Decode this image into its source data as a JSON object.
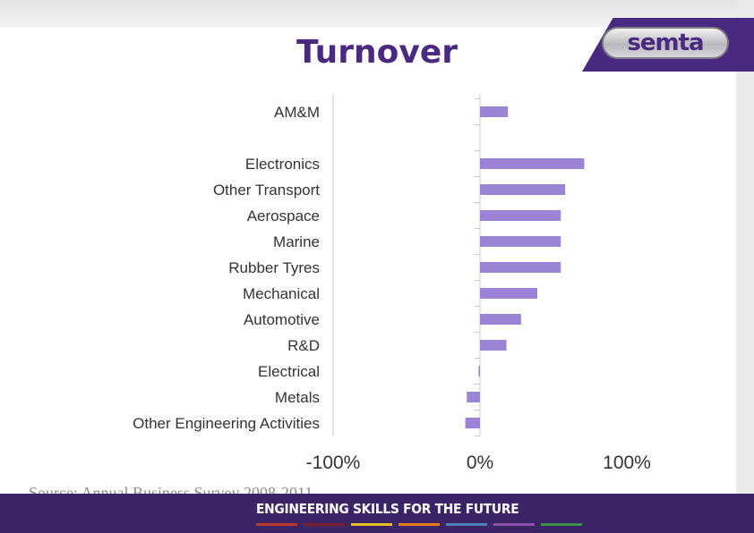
{
  "title": "Turnover",
  "logo": {
    "text": "semta"
  },
  "source": "Source: Annual Business Survey 2008-2011",
  "footer": {
    "tagline": "ENGINEERING SKILLS FOR THE FUTURE",
    "stripes": [
      "#c0392b",
      "#7a1f2b",
      "#e3c02a",
      "#e47a1f",
      "#4f7fbf",
      "#8e4fa8",
      "#3a8f4a"
    ]
  },
  "colors": {
    "bar": "#9b84d6",
    "title": "#4a2a80",
    "footer": "#3b2567"
  },
  "chart_data": {
    "type": "bar",
    "orientation": "horizontal",
    "categories": [
      "AM&M",
      "",
      "Electronics",
      "Other Transport",
      "Aerospace",
      "Marine",
      "Rubber Tyres",
      "Mechanical",
      "Automotive",
      "R&D",
      "Electrical",
      "Metals",
      "Other Engineering Activities"
    ],
    "values": [
      19,
      null,
      71,
      58,
      55,
      55,
      55,
      39,
      28,
      18,
      -1,
      -9,
      -10
    ],
    "xlim": [
      -100,
      100
    ],
    "xticks": [
      -100,
      0,
      100
    ],
    "xtick_labels": [
      "-100%",
      "0%",
      "100%"
    ],
    "grid": false
  }
}
